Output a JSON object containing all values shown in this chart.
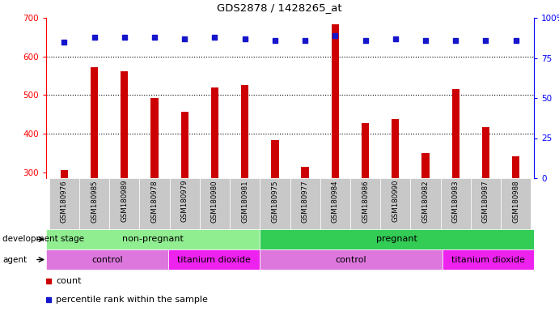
{
  "title": "GDS2878 / 1428265_at",
  "samples": [
    "GSM180976",
    "GSM180985",
    "GSM180989",
    "GSM180978",
    "GSM180979",
    "GSM180980",
    "GSM180981",
    "GSM180975",
    "GSM180977",
    "GSM180984",
    "GSM180986",
    "GSM180990",
    "GSM180982",
    "GSM180983",
    "GSM180987",
    "GSM180988"
  ],
  "counts": [
    305,
    572,
    562,
    493,
    456,
    519,
    526,
    383,
    315,
    683,
    428,
    438,
    350,
    516,
    418,
    342
  ],
  "percentile_ranks_pct": [
    85,
    88,
    88,
    88,
    87,
    88,
    87,
    86,
    86,
    89,
    86,
    87,
    86,
    86,
    86,
    86
  ],
  "ylim_left": [
    285,
    700
  ],
  "ylim_right": [
    0,
    100
  ],
  "yticks_left": [
    300,
    400,
    500,
    600,
    700
  ],
  "yticks_right": [
    0,
    25,
    50,
    75,
    100
  ],
  "bar_color": "#cc0000",
  "dot_color": "#1515cc",
  "bg_color": "#ffffff",
  "tick_area_color": "#c8c8c8",
  "dev_stage_colors": [
    "#90ee90",
    "#33cc55"
  ],
  "dev_stage_labels": [
    "non-pregnant",
    "pregnant"
  ],
  "dev_stage_ranges": [
    [
      0,
      7
    ],
    [
      7,
      16
    ]
  ],
  "agent_colors": [
    "#dd77dd",
    "#ee22ee",
    "#dd77dd",
    "#ee22ee"
  ],
  "agent_labels": [
    "control",
    "titanium dioxide",
    "control",
    "titanium dioxide"
  ],
  "agent_ranges": [
    [
      0,
      4
    ],
    [
      4,
      7
    ],
    [
      7,
      13
    ],
    [
      13,
      16
    ]
  ],
  "legend_items": [
    {
      "label": "count",
      "color": "#cc0000"
    },
    {
      "label": "percentile rank within the sample",
      "color": "#1515cc"
    }
  ]
}
